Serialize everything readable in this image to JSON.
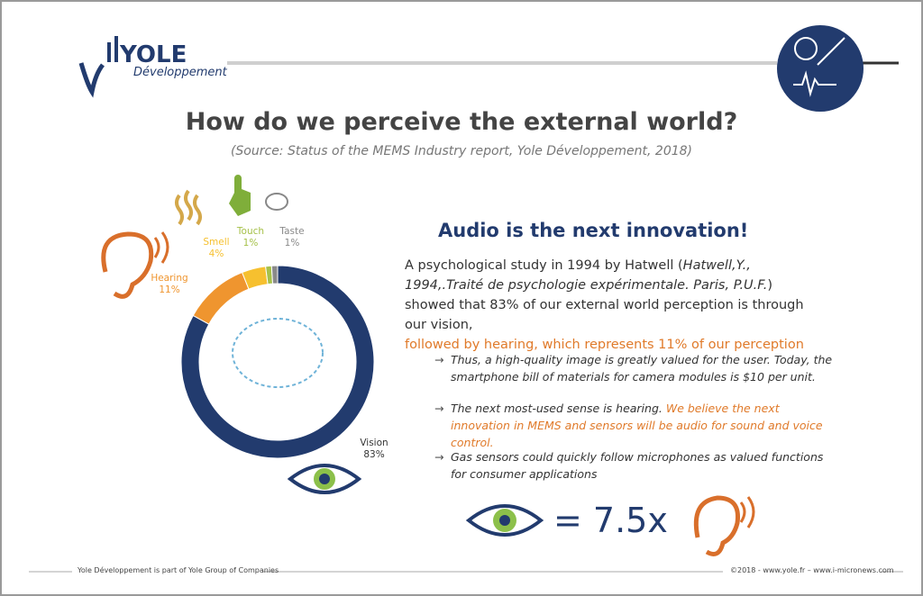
{
  "header": {
    "logo_name": "YOLE",
    "logo_sub": "Développement"
  },
  "title": "How do we perceive the external world?",
  "source": "(Source: Status of the MEMS Industry report, Yole Développement, 2018)",
  "chart_data": {
    "type": "donut",
    "categories": [
      "Vision",
      "Hearing",
      "Smell",
      "Touch",
      "Taste"
    ],
    "values": [
      83,
      11,
      4,
      1,
      1
    ],
    "value_labels": [
      "83%",
      "11%",
      "4%",
      "1%",
      "1%"
    ],
    "colors": [
      "#223b6e",
      "#ef952f",
      "#f6c02f",
      "#a6c14a",
      "#8a8a8a"
    ]
  },
  "heading": "Audio is the next innovation!",
  "paragraph": {
    "segments": [
      "A psychological study in 1994 by Hatwell (",
      "Hatwell,Y., 1994,.Traité de psychologie expérimentale. Paris, P.U.F.",
      ") showed that 83% of our external world perception is through our vision,",
      "followed by hearing, which represents 11% of our perception"
    ]
  },
  "bullets": [
    {
      "segments": [
        "Thus, a high-quality image is greatly valued for the user. Today, the smartphone bill of materials for camera modules is $10 per unit."
      ]
    },
    {
      "segments": [
        "The next most-used sense is hearing.",
        " We believe the next innovation in MEMS and sensors will be audio for sound and voice control."
      ]
    },
    {
      "segments": [
        "Gas sensors could quickly follow microphones as valued functions for consumer applications"
      ]
    }
  ],
  "equation": "= 7.5x",
  "footer": {
    "left": "Yole Développement is part of Yole Group of Companies",
    "right": "©2018 - www.yole.fr – www.i-micronews.com"
  }
}
